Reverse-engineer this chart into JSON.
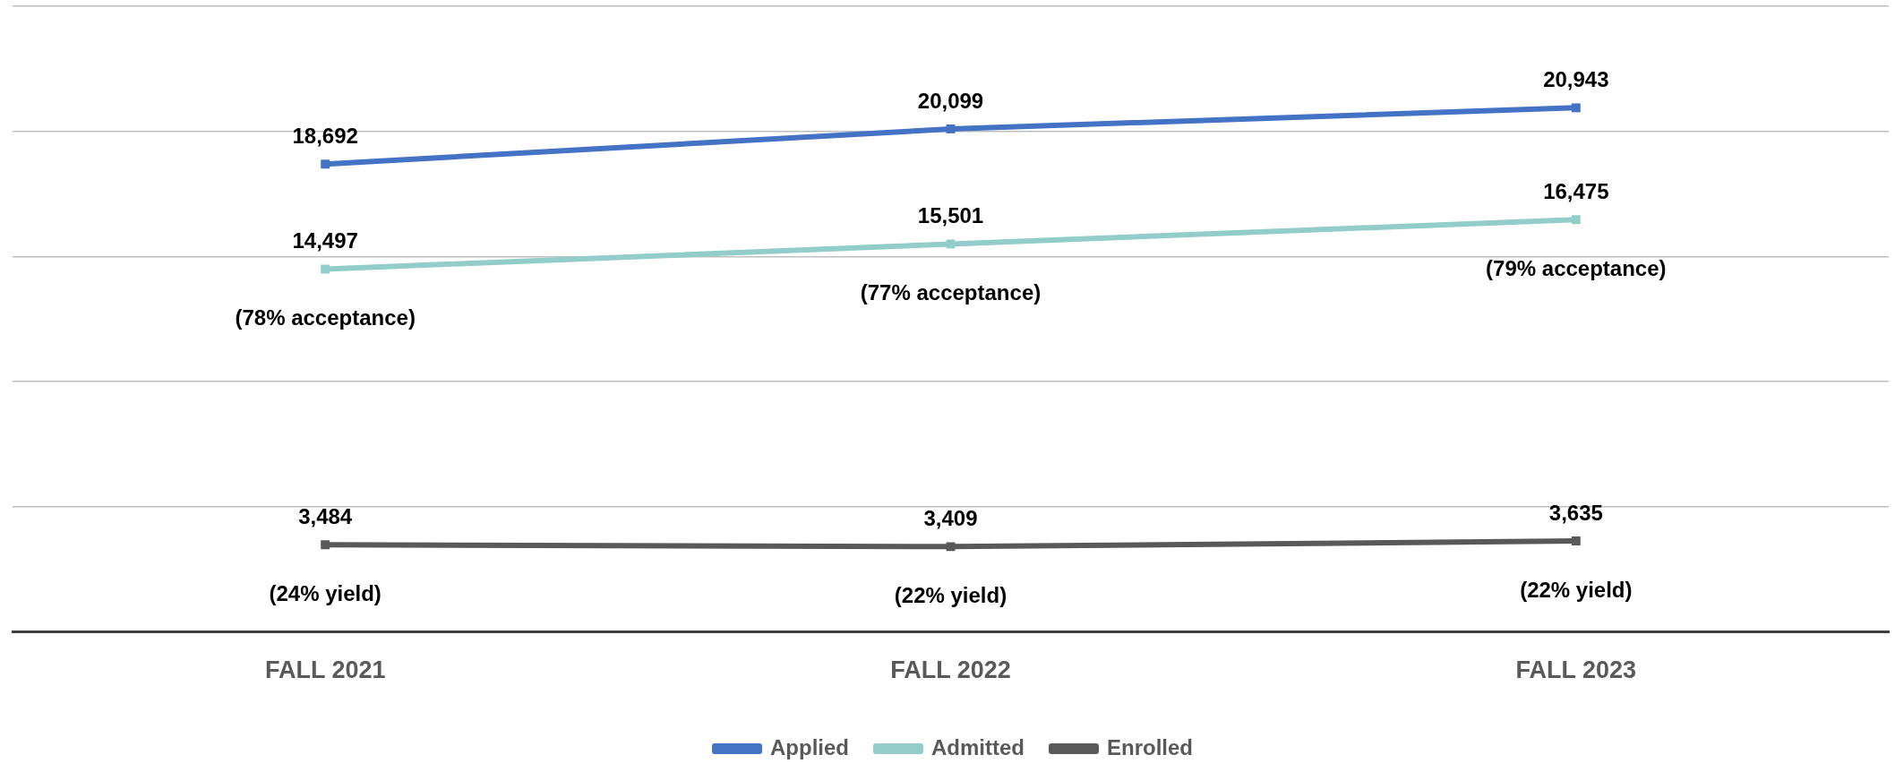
{
  "chart_data": {
    "type": "line",
    "categories": [
      "FALL 2021",
      "FALL 2022",
      "FALL 2023"
    ],
    "series": [
      {
        "name": "Applied",
        "color": "#4472c4",
        "values": [
          18692,
          20099,
          20943
        ],
        "value_labels": [
          "18,692",
          "20,099",
          "20,943"
        ]
      },
      {
        "name": "Admitted",
        "color": "#93cdc9",
        "values": [
          14497,
          15501,
          16475
        ],
        "value_labels": [
          "14,497",
          "15,501",
          "16,475"
        ]
      },
      {
        "name": "Enrolled",
        "color": "#595959",
        "values": [
          3484,
          3409,
          3635
        ],
        "value_labels": [
          "3,484",
          "3,409",
          "3,635"
        ]
      }
    ],
    "tick_labels": "x",
    "grid": "y",
    "legend": "bottom",
    "marker": "square",
    "line_style": "solid",
    "annotations": [
      "(78% acceptance)",
      "(77% acceptance)",
      "(79% acceptance)",
      "(24% yield)",
      "(22% yield)",
      "(22% yield)"
    ]
  }
}
